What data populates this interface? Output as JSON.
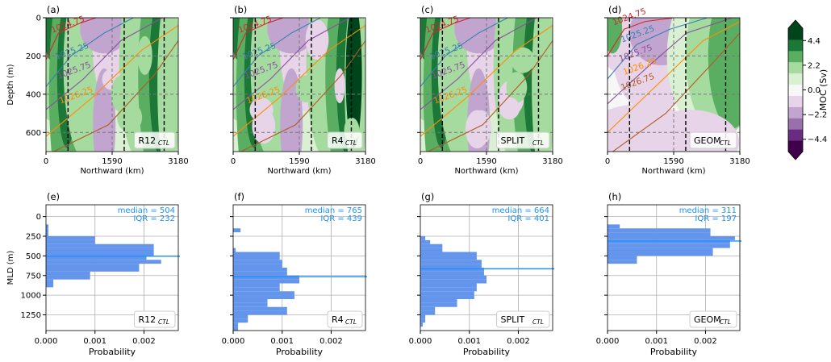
{
  "colors": {
    "moc_levels": [
      "#40004b",
      "#6a2c80",
      "#9970ab",
      "#c2a5cf",
      "#e7d4e8",
      "#f7f7f7",
      "#d9f0d3",
      "#a6dba0",
      "#5aae61",
      "#1b7837",
      "#00441b"
    ],
    "isopycnal_1024_75": "#d62728",
    "isopycnal_1025_25": "#3a7fb5",
    "isopycnal_1025_75": "#8a4fa0",
    "isopycnal_1026_25": "#ff8c00",
    "isopycnal_1026_75": "#b35a1f",
    "histogram_bar": "#6495ed",
    "median_line": "#1e90ff",
    "stats_text": "#1e90ff",
    "grid": "#b0b0b0"
  },
  "colorbar": {
    "label": "MOC (Sv)",
    "ticks": [
      "4.4",
      "2.2",
      "0.0",
      "−2.2",
      "−4.4"
    ]
  },
  "chart_data": [
    {
      "type": "heatmap",
      "panel": "(a)",
      "label": "R12",
      "label_sub": "CTL",
      "xlabel": "Northward (km)",
      "ylabel": "Depth (m)",
      "xticks": [
        "0",
        "1590",
        "3180"
      ],
      "yticks": [
        "0",
        "200",
        "400",
        "600"
      ],
      "xlim": [
        0,
        3180
      ],
      "ylim": [
        700,
        0
      ],
      "isopycnal_labels": [
        "1024.75",
        "1025.25",
        "1025.75",
        "1026.25"
      ]
    },
    {
      "type": "heatmap",
      "panel": "(b)",
      "label": "R4",
      "label_sub": "CTL",
      "xlabel": "Northward (km)",
      "xticks": [
        "0",
        "1590",
        "3180"
      ],
      "xlim": [
        0,
        3180
      ],
      "ylim": [
        700,
        0
      ],
      "isopycnal_labels": [
        "1024.75",
        "1025.25",
        "1025.75",
        "1026.25"
      ]
    },
    {
      "type": "heatmap",
      "panel": "(c)",
      "label": "SPLIT",
      "label_sub": "CTL",
      "xlabel": "Northward (km)",
      "xticks": [
        "0",
        "1590",
        "3180"
      ],
      "xlim": [
        0,
        3180
      ],
      "ylim": [
        700,
        0
      ],
      "isopycnal_labels": [
        "1024.75",
        "1025.25",
        "1025.75",
        "1026.25"
      ]
    },
    {
      "type": "heatmap",
      "panel": "(d)",
      "label": "GEOM",
      "label_sub": "CTL",
      "xlabel": "Northward (km)",
      "xticks": [
        "0",
        "1590",
        "3180"
      ],
      "xlim": [
        0,
        3180
      ],
      "ylim": [
        700,
        0
      ],
      "isopycnal_labels": [
        "1024.75",
        "1025.25",
        "1025.75",
        "1026.25",
        "1026.75"
      ]
    },
    {
      "type": "bar",
      "orientation": "horizontal",
      "panel": "(e)",
      "label": "R12",
      "label_sub": "CTL",
      "xlabel": "Probability",
      "ylabel": "MLD (m)",
      "xticks": [
        "0.000",
        "0.001",
        "0.002"
      ],
      "yticks": [
        "0",
        "250",
        "500",
        "750",
        "1000",
        "1250"
      ],
      "xlim": [
        0,
        0.0027
      ],
      "ylim": [
        1450,
        -150
      ],
      "bin_width": 50,
      "bins": [
        100,
        150,
        200,
        250,
        300,
        350,
        400,
        450,
        500,
        550,
        600,
        650,
        700,
        750,
        800,
        850
      ],
      "values": [
        5e-05,
        5e-05,
        5e-05,
        0.001,
        0.001,
        0.0022,
        0.0022,
        0.0022,
        0.00205,
        0.00235,
        0.0019,
        0.0019,
        0.0009,
        0.0009,
        0.00015,
        0.00015
      ],
      "median": 504,
      "median_text": "median = 504",
      "iqr_text": "IQR = 232"
    },
    {
      "type": "bar",
      "orientation": "horizontal",
      "panel": "(f)",
      "label": "R4",
      "label_sub": "CTL",
      "xlabel": "Probability",
      "xticks": [
        "0.000",
        "0.001",
        "0.002"
      ],
      "xlim": [
        0,
        0.0027
      ],
      "ylim": [
        1450,
        -150
      ],
      "bin_width": 50,
      "bins": [
        150,
        200,
        250,
        300,
        350,
        400,
        450,
        500,
        550,
        600,
        650,
        700,
        750,
        800,
        850,
        900,
        950,
        1000,
        1050,
        1100,
        1150,
        1200,
        1250,
        1300,
        1350,
        1400
      ],
      "values": [
        0.00015,
        0.0,
        0.0,
        0.0,
        0.0,
        5e-05,
        0.00095,
        0.00095,
        0.001,
        0.001,
        0.0011,
        0.0011,
        0.00135,
        0.00135,
        0.00095,
        0.00095,
        0.00125,
        0.00125,
        0.0007,
        0.0007,
        0.0011,
        0.0011,
        0.0003,
        0.0003,
        0.0001,
        0.0001
      ],
      "median": 765,
      "median_text": "median = 765",
      "iqr_text": "IQR = 439"
    },
    {
      "type": "bar",
      "orientation": "horizontal",
      "panel": "(g)",
      "label": "SPLIT",
      "label_sub": "CTL",
      "xlabel": "Probability",
      "xticks": [
        "0.000",
        "0.001",
        "0.002"
      ],
      "xlim": [
        0,
        0.0027
      ],
      "ylim": [
        1450,
        -150
      ],
      "bin_width": 50,
      "bins": [
        150,
        200,
        250,
        300,
        350,
        400,
        450,
        500,
        550,
        600,
        650,
        700,
        750,
        800,
        850,
        900,
        950,
        1000,
        1050,
        1100,
        1150,
        1200,
        1250,
        1300,
        1350
      ],
      "values": [
        0.0,
        0.0,
        0.0001,
        0.0002,
        0.00045,
        0.00045,
        0.00115,
        0.00115,
        0.00125,
        0.00125,
        0.0013,
        0.0013,
        0.00135,
        0.00135,
        0.00115,
        0.00115,
        0.0011,
        0.0011,
        0.00075,
        0.00075,
        0.0003,
        0.0003,
        0.0001,
        0.0001,
        5e-05
      ],
      "median": 664,
      "median_text": "median = 664",
      "iqr_text": "IQR = 401"
    },
    {
      "type": "bar",
      "orientation": "horizontal",
      "panel": "(h)",
      "label": "GEOM",
      "label_sub": "CTL",
      "xlabel": "Probability",
      "xticks": [
        "0.000",
        "0.001",
        "0.002"
      ],
      "xlim": [
        0,
        0.0027
      ],
      "ylim": [
        1450,
        -150
      ],
      "bin_width": 50,
      "bins": [
        100,
        150,
        200,
        250,
        300,
        350,
        400,
        450,
        500,
        550
      ],
      "values": [
        0.00025,
        0.0021,
        0.0021,
        0.0026,
        0.0025,
        0.0025,
        0.00215,
        0.00215,
        0.0006,
        0.0006
      ],
      "median": 311,
      "median_text": "median = 311",
      "iqr_text": "IQR = 197"
    }
  ]
}
